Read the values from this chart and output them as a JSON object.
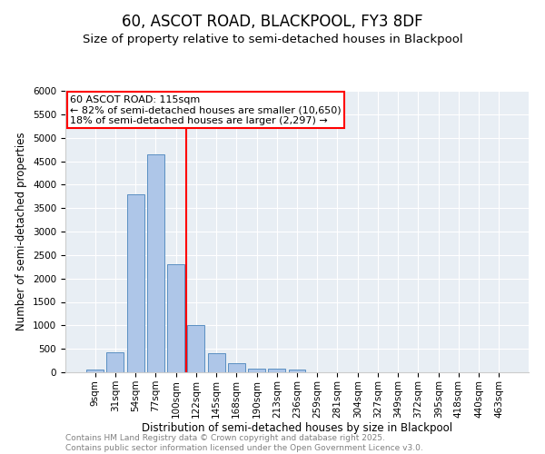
{
  "title_line1": "60, ASCOT ROAD, BLACKPOOL, FY3 8DF",
  "title_line2": "Size of property relative to semi-detached houses in Blackpool",
  "xlabel": "Distribution of semi-detached houses by size in Blackpool",
  "ylabel": "Number of semi-detached properties",
  "categories": [
    "9sqm",
    "31sqm",
    "54sqm",
    "77sqm",
    "100sqm",
    "122sqm",
    "145sqm",
    "168sqm",
    "190sqm",
    "213sqm",
    "236sqm",
    "259sqm",
    "281sqm",
    "304sqm",
    "327sqm",
    "349sqm",
    "372sqm",
    "395sqm",
    "418sqm",
    "440sqm",
    "463sqm"
  ],
  "values": [
    50,
    430,
    3800,
    4650,
    2300,
    1000,
    410,
    200,
    80,
    70,
    55,
    0,
    0,
    0,
    0,
    0,
    0,
    0,
    0,
    0,
    0
  ],
  "bar_color": "#aec6e8",
  "bar_edge_color": "#5a8fc2",
  "vline_color": "red",
  "annotation_title": "60 ASCOT ROAD: 115sqm",
  "annotation_line1": "← 82% of semi-detached houses are smaller (10,650)",
  "annotation_line2": "18% of semi-detached houses are larger (2,297) →",
  "annotation_box_color": "white",
  "annotation_edge_color": "red",
  "ylim": [
    0,
    6000
  ],
  "yticks": [
    0,
    500,
    1000,
    1500,
    2000,
    2500,
    3000,
    3500,
    4000,
    4500,
    5000,
    5500,
    6000
  ],
  "background_color": "#e8eef4",
  "footer_line1": "Contains HM Land Registry data © Crown copyright and database right 2025.",
  "footer_line2": "Contains public sector information licensed under the Open Government Licence v3.0.",
  "title_fontsize": 12,
  "subtitle_fontsize": 9.5,
  "axis_label_fontsize": 8.5,
  "tick_fontsize": 7.5,
  "annotation_fontsize": 8,
  "footer_fontsize": 6.5
}
